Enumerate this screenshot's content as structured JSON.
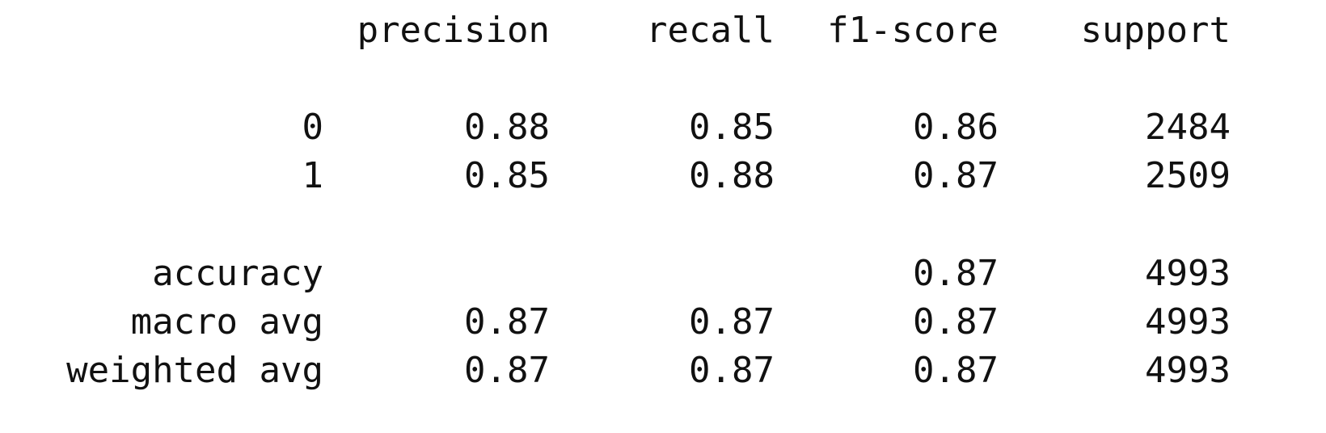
{
  "header": {
    "precision": "precision",
    "recall": "recall",
    "f1_score": "f1-score",
    "support": "support"
  },
  "rows": [
    {
      "label": "0",
      "precision": "0.88",
      "recall": "0.85",
      "f1_score": "0.86",
      "support": "2484"
    },
    {
      "label": "1",
      "precision": "0.85",
      "recall": "0.88",
      "f1_score": "0.87",
      "support": "2509"
    }
  ],
  "summary": [
    {
      "label": "accuracy",
      "precision": "",
      "recall": "",
      "f1_score": "0.87",
      "support": "4993"
    },
    {
      "label": "macro avg",
      "precision": "0.87",
      "recall": "0.87",
      "f1_score": "0.87",
      "support": "4993"
    },
    {
      "label": "weighted avg",
      "precision": "0.87",
      "recall": "0.87",
      "f1_score": "0.87",
      "support": "4993"
    }
  ]
}
